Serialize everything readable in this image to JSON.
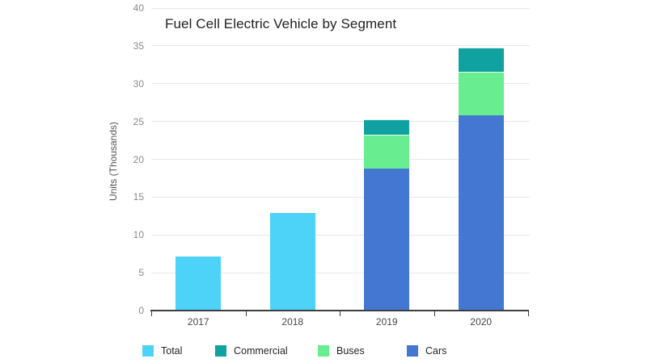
{
  "page": {
    "background": "#ffffff"
  },
  "chart_data": {
    "type": "bar",
    "stacked": true,
    "title": "Fuel Cell Electric Vehicle by Segment",
    "ylabel": "Units (Thousands)",
    "xlabel": "",
    "categories": [
      "2017",
      "2018",
      "2019",
      "2020"
    ],
    "series": [
      {
        "name": "Total",
        "color": "#4dd2f8",
        "values": [
          7.1,
          12.9,
          0,
          0
        ]
      },
      {
        "name": "Cars",
        "color": "#4377d2",
        "values": [
          0,
          0,
          18.8,
          25.8
        ]
      },
      {
        "name": "Buses",
        "color": "#68ed90",
        "values": [
          0,
          0,
          4.5,
          5.8
        ]
      },
      {
        "name": "Commercial",
        "color": "#0fa2a0",
        "values": [
          0,
          0,
          2.0,
          3.2
        ]
      }
    ],
    "stack_totals": [
      7.1,
      12.9,
      25.3,
      34.8
    ],
    "ylim": [
      0,
      40
    ],
    "ytick_step": 5,
    "grid": true,
    "legend_position": "bottom",
    "legend_order": [
      "Total",
      "Commercial",
      "Buses",
      "Cars"
    ],
    "colors": {
      "axis": "#3f3f3f",
      "gridline": "#e7e7e7",
      "y_tick_label": "#8a8a8a",
      "x_tick_label": "#474747",
      "title": "#1f1f1f",
      "legend_label": "#262626",
      "background": "#ffffff"
    }
  }
}
